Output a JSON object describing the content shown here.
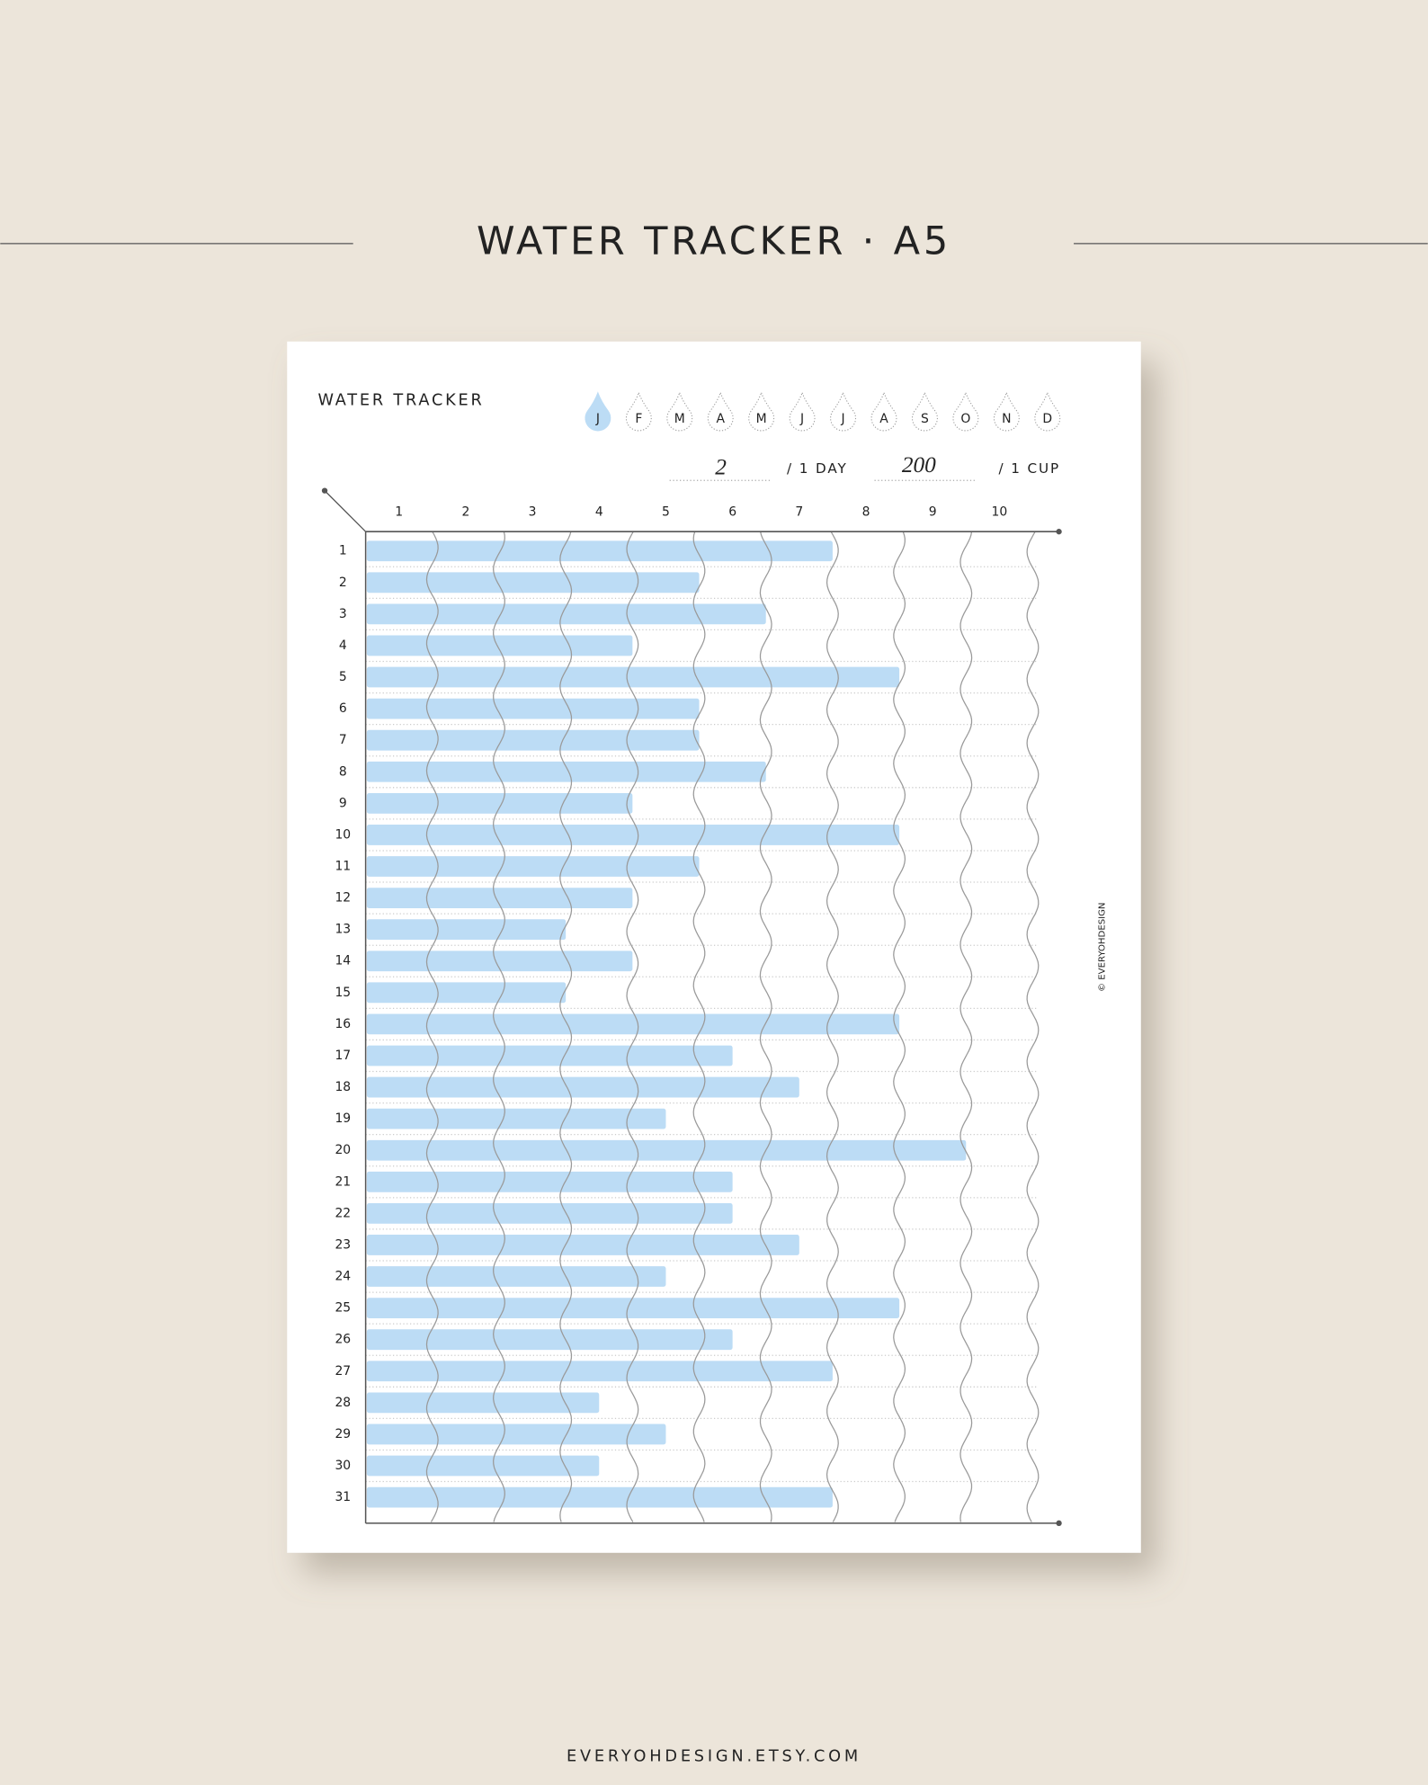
{
  "page": {
    "title": "WATER TRACKER · A5",
    "footer": "EVERYOHDESIGN.ETSY.COM",
    "copyright": "© EVERYOHDESIGN",
    "months": [
      "J",
      "F",
      "M",
      "A",
      "M",
      "J",
      "J",
      "A",
      "S",
      "O",
      "N",
      "D"
    ],
    "active_month": 0,
    "goal": {
      "per_day": "2",
      "per_day_label": "/ 1 DAY",
      "per_cup": "200",
      "per_cup_label": "/ 1 CUP"
    }
  },
  "chart_data": {
    "type": "bar",
    "orientation": "horizontal",
    "title": "WATER TRACKER",
    "categories": [
      "1",
      "2",
      "3",
      "4",
      "5",
      "6",
      "7",
      "8",
      "9",
      "10",
      "11",
      "12",
      "13",
      "14",
      "15",
      "16",
      "17",
      "18",
      "19",
      "20",
      "21",
      "22",
      "23",
      "24",
      "25",
      "26",
      "27",
      "28",
      "29",
      "30",
      "31"
    ],
    "values": [
      7,
      5,
      6,
      4,
      8,
      5,
      5,
      6,
      4,
      8,
      5,
      4,
      3,
      4,
      3,
      8,
      5.5,
      6.5,
      4.5,
      9,
      5.5,
      5.5,
      6.5,
      4.5,
      8,
      5.5,
      7,
      3.5,
      4.5,
      3.5,
      7
    ],
    "color": "#bcdcf5",
    "xlim": [
      0,
      10
    ],
    "xticks": [
      1,
      2,
      3,
      4,
      5,
      6,
      7,
      8,
      9,
      10
    ],
    "grid": true
  }
}
